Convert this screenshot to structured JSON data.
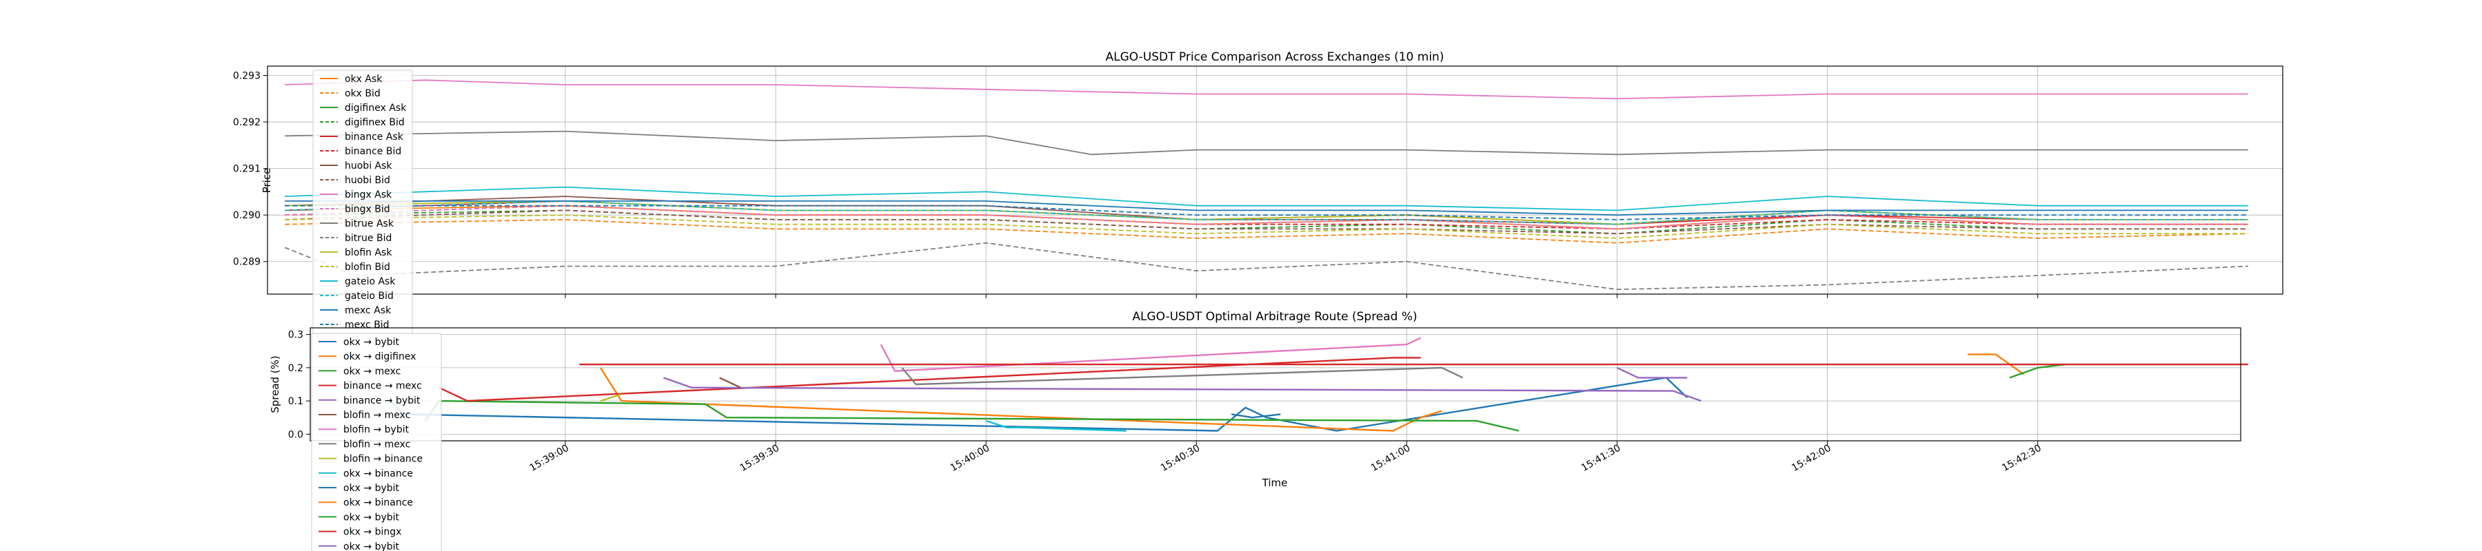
{
  "chart_data": [
    {
      "type": "line",
      "title": "ALGO-USDT Price Comparison Across Exchanges (10 min)",
      "xlabel": "",
      "ylabel": "Price",
      "ylim": [
        0.2883,
        0.2932
      ],
      "yticks": [
        "0.289",
        "0.290",
        "0.291",
        "0.292",
        "0.293"
      ],
      "x_ticks": [
        "15:39:00",
        "15:39:30",
        "15:40:00",
        "15:40:30",
        "15:41:00",
        "15:41:30",
        "15:42:00",
        "15:42:30"
      ],
      "grid": true,
      "legend_position": "upper-left",
      "series": [
        {
          "name": "okx Ask",
          "color": "#ff7f0e",
          "dash": "solid",
          "x": [
            "15:38:20",
            "15:39:00",
            "15:39:30",
            "15:40:00",
            "15:40:30",
            "15:41:00",
            "15:41:30",
            "15:42:00",
            "15:42:30",
            "15:43:00"
          ],
          "y": [
            0.2901,
            0.2902,
            0.29,
            0.29,
            0.2898,
            0.2899,
            0.2897,
            0.29,
            0.2898,
            0.2898
          ]
        },
        {
          "name": "okx Bid",
          "color": "#ff7f0e",
          "dash": "dashed",
          "x": [
            "15:38:20",
            "15:39:00",
            "15:39:30",
            "15:40:00",
            "15:40:30",
            "15:41:00",
            "15:41:30",
            "15:42:00",
            "15:42:30",
            "15:43:00"
          ],
          "y": [
            0.2898,
            0.2899,
            0.2897,
            0.2897,
            0.2895,
            0.2896,
            0.2894,
            0.2897,
            0.2895,
            0.2896
          ]
        },
        {
          "name": "digifinex Ask",
          "color": "#2ca02c",
          "dash": "solid",
          "x": [
            "15:38:20",
            "15:39:00",
            "15:39:30",
            "15:40:00",
            "15:40:30",
            "15:41:00",
            "15:41:30",
            "15:42:00",
            "15:42:30",
            "15:43:00"
          ],
          "y": [
            0.2902,
            0.2903,
            0.2901,
            0.2901,
            0.2899,
            0.29,
            0.2898,
            0.2901,
            0.2899,
            0.2899
          ]
        },
        {
          "name": "digifinex Bid",
          "color": "#2ca02c",
          "dash": "dashed",
          "x": [
            "15:38:20",
            "15:39:00",
            "15:39:30",
            "15:40:00",
            "15:40:30",
            "15:41:00",
            "15:41:30",
            "15:42:00",
            "15:42:30",
            "15:43:00"
          ],
          "y": [
            0.29,
            0.2901,
            0.2899,
            0.2899,
            0.2897,
            0.2898,
            0.2896,
            0.2899,
            0.2897,
            0.2897
          ]
        },
        {
          "name": "binance Ask",
          "color": "#d62728",
          "dash": "solid",
          "x": [
            "15:38:20",
            "15:39:00",
            "15:39:30",
            "15:40:00",
            "15:40:30",
            "15:41:00",
            "15:41:30",
            "15:42:00",
            "15:42:30",
            "15:43:00"
          ],
          "y": [
            0.2901,
            0.2903,
            0.2901,
            0.2901,
            0.2899,
            0.2899,
            0.2898,
            0.29,
            0.2899,
            0.2899
          ]
        },
        {
          "name": "binance Bid",
          "color": "#d62728",
          "dash": "dashed",
          "x": [
            "15:38:20",
            "15:39:00",
            "15:39:30",
            "15:40:00",
            "15:40:30",
            "15:41:00",
            "15:41:30",
            "15:42:00",
            "15:42:30",
            "15:43:00"
          ],
          "y": [
            0.29,
            0.2902,
            0.29,
            0.29,
            0.2898,
            0.2898,
            0.2897,
            0.2899,
            0.2898,
            0.2898
          ]
        },
        {
          "name": "huobi Ask",
          "color": "#8c564b",
          "dash": "solid",
          "x": [
            "15:38:20",
            "15:39:00",
            "15:39:30",
            "15:40:00",
            "15:40:30",
            "15:41:00",
            "15:41:30",
            "15:42:00",
            "15:42:30",
            "15:43:00"
          ],
          "y": [
            0.2902,
            0.2904,
            0.2902,
            0.2902,
            0.2899,
            0.29,
            0.2898,
            0.2901,
            0.2899,
            0.2899
          ]
        },
        {
          "name": "huobi Bid",
          "color": "#8c564b",
          "dash": "dashed",
          "x": [
            "15:38:20",
            "15:39:00",
            "15:39:30",
            "15:40:00",
            "15:40:30",
            "15:41:00",
            "15:41:30",
            "15:42:00",
            "15:42:30",
            "15:43:00"
          ],
          "y": [
            0.2899,
            0.2901,
            0.2899,
            0.2899,
            0.2897,
            0.2897,
            0.2896,
            0.2898,
            0.2897,
            0.2897
          ]
        },
        {
          "name": "bingx Ask",
          "color": "#e377c2",
          "dash": "solid",
          "x": [
            "15:38:20",
            "15:38:40",
            "15:39:00",
            "15:39:30",
            "15:40:00",
            "15:40:30",
            "15:41:00",
            "15:41:30",
            "15:42:00",
            "15:42:30",
            "15:43:00"
          ],
          "y": [
            0.2928,
            0.2929,
            0.2928,
            0.2928,
            0.2927,
            0.2926,
            0.2926,
            0.2925,
            0.2926,
            0.2926,
            0.2926
          ]
        },
        {
          "name": "bingx Bid",
          "color": "#e377c2",
          "dash": "dashed",
          "x": [
            "15:38:20",
            "15:39:00",
            "15:39:30",
            "15:40:00",
            "15:40:30",
            "15:41:00",
            "15:41:30",
            "15:42:00",
            "15:42:30",
            "15:43:00"
          ],
          "y": [
            0.29,
            0.2902,
            0.29,
            0.29,
            0.2898,
            0.2899,
            0.2897,
            0.29,
            0.2898,
            0.2898
          ]
        },
        {
          "name": "bitrue Ask",
          "color": "#7f7f7f",
          "dash": "solid",
          "x": [
            "15:38:20",
            "15:39:00",
            "15:39:30",
            "15:40:00",
            "15:40:15",
            "15:40:30",
            "15:41:00",
            "15:41:30",
            "15:42:00",
            "15:42:30",
            "15:43:00"
          ],
          "y": [
            0.2917,
            0.2918,
            0.2916,
            0.2917,
            0.2913,
            0.2914,
            0.2914,
            0.2913,
            0.2914,
            0.2914,
            0.2914
          ]
        },
        {
          "name": "bitrue Bid",
          "color": "#7f7f7f",
          "dash": "dashed",
          "x": [
            "15:38:20",
            "15:38:30",
            "15:39:00",
            "15:39:30",
            "15:40:00",
            "15:40:30",
            "15:41:00",
            "15:41:30",
            "15:42:00",
            "15:42:30",
            "15:43:00"
          ],
          "y": [
            0.2893,
            0.2887,
            0.2889,
            0.2889,
            0.2894,
            0.2888,
            0.289,
            0.2884,
            0.2885,
            0.2887,
            0.2889
          ]
        },
        {
          "name": "blofin Ask",
          "color": "#bcbd22",
          "dash": "solid",
          "x": [
            "15:38:20",
            "15:39:00",
            "15:39:30",
            "15:40:00",
            "15:40:30",
            "15:41:00",
            "15:41:30",
            "15:42:00",
            "15:42:30",
            "15:43:00"
          ],
          "y": [
            0.2902,
            0.2903,
            0.2901,
            0.2901,
            0.2899,
            0.29,
            0.2898,
            0.2901,
            0.2899,
            0.2899
          ]
        },
        {
          "name": "blofin Bid",
          "color": "#bcbd22",
          "dash": "dashed",
          "x": [
            "15:38:20",
            "15:39:00",
            "15:39:30",
            "15:40:00",
            "15:40:30",
            "15:41:00",
            "15:41:30",
            "15:42:00",
            "15:42:30",
            "15:43:00"
          ],
          "y": [
            0.2899,
            0.29,
            0.2898,
            0.2898,
            0.2896,
            0.2897,
            0.2895,
            0.2898,
            0.2896,
            0.2896
          ]
        },
        {
          "name": "gateio Ask",
          "color": "#17becf",
          "dash": "solid",
          "x": [
            "15:38:20",
            "15:39:00",
            "15:39:30",
            "15:40:00",
            "15:40:30",
            "15:41:00",
            "15:41:30",
            "15:42:00",
            "15:42:30",
            "15:43:00"
          ],
          "y": [
            0.2904,
            0.2906,
            0.2904,
            0.2905,
            0.2902,
            0.2902,
            0.2901,
            0.2904,
            0.2902,
            0.2902
          ]
        },
        {
          "name": "gateio Bid",
          "color": "#17becf",
          "dash": "dashed",
          "x": [
            "15:38:20",
            "15:39:00",
            "15:39:30",
            "15:40:00",
            "15:40:30",
            "15:41:00",
            "15:41:30",
            "15:42:00",
            "15:42:30",
            "15:43:00"
          ],
          "y": [
            0.2901,
            0.2903,
            0.2901,
            0.2901,
            0.2899,
            0.2899,
            0.2898,
            0.2901,
            0.2899,
            0.2899
          ]
        },
        {
          "name": "mexc Ask",
          "color": "#1f77b4",
          "dash": "solid",
          "x": [
            "15:38:20",
            "15:39:00",
            "15:39:30",
            "15:40:00",
            "15:40:30",
            "15:41:00",
            "15:41:30",
            "15:42:00",
            "15:42:30",
            "15:43:00"
          ],
          "y": [
            0.2903,
            0.2903,
            0.2903,
            0.2903,
            0.2901,
            0.2901,
            0.29,
            0.2901,
            0.2901,
            0.2901
          ]
        },
        {
          "name": "mexc Bid",
          "color": "#1f77b4",
          "dash": "dashed",
          "x": [
            "15:38:20",
            "15:39:00",
            "15:39:30",
            "15:40:00",
            "15:40:30",
            "15:41:00",
            "15:41:30",
            "15:42:00",
            "15:42:30",
            "15:43:00"
          ],
          "y": [
            0.2902,
            0.2902,
            0.2902,
            0.2902,
            0.29,
            0.29,
            0.2899,
            0.29,
            0.29,
            0.29
          ]
        }
      ]
    },
    {
      "type": "line",
      "title": "ALGO-USDT Optimal Arbitrage Route (Spread %)",
      "xlabel": "Time",
      "ylabel": "Spread (%)",
      "ylim": [
        -0.02,
        0.32
      ],
      "yticks": [
        "0.0",
        "0.1",
        "0.2",
        "0.3"
      ],
      "x_ticks": [
        "15:39:00",
        "15:39:30",
        "15:40:00",
        "15:40:30",
        "15:41:00",
        "15:41:30",
        "15:42:00",
        "15:42:30"
      ],
      "grid": true,
      "legend_position": "upper-left",
      "series": [
        {
          "name": "okx → bybit",
          "color": "#1f77b4",
          "x": [
            "15:38:35",
            "15:38:37",
            "15:40:33",
            "15:40:37",
            "15:40:40",
            "15:40:50",
            "15:41:37",
            "15:41:40"
          ],
          "y": [
            0.1,
            0.06,
            0.01,
            0.08,
            0.05,
            0.01,
            0.17,
            0.11
          ]
        },
        {
          "name": "okx → digifinex",
          "color": "#ff7f0e",
          "x": [
            "15:39:05",
            "15:39:08",
            "15:40:58",
            "15:41:02",
            "15:41:05"
          ],
          "y": [
            0.2,
            0.1,
            0.01,
            0.05,
            0.07
          ]
        },
        {
          "name": "okx → mexc",
          "color": "#2ca02c",
          "x": [
            "15:38:40",
            "15:38:42",
            "15:39:20",
            "15:39:23",
            "15:41:10",
            "15:41:16"
          ],
          "y": [
            0.04,
            0.1,
            0.09,
            0.05,
            0.04,
            0.01
          ]
        },
        {
          "name": "binance → mexc",
          "color": "#d62728",
          "x": [
            "15:38:42",
            "15:38:46",
            "15:40:58",
            "15:41:02"
          ],
          "y": [
            0.14,
            0.1,
            0.23,
            0.23
          ]
        },
        {
          "name": "binance → bybit",
          "color": "#9467bd",
          "x": [
            "15:39:14",
            "15:39:18",
            "15:41:38",
            "15:41:42"
          ],
          "y": [
            0.17,
            0.14,
            0.13,
            0.1
          ]
        },
        {
          "name": "blofin → mexc",
          "color": "#8c564b",
          "x": [
            "15:39:22",
            "15:39:25"
          ],
          "y": [
            0.17,
            0.14
          ]
        },
        {
          "name": "blofin → bybit",
          "color": "#e377c2",
          "x": [
            "15:39:45",
            "15:39:47",
            "15:41:00",
            "15:41:02"
          ],
          "y": [
            0.27,
            0.19,
            0.27,
            0.29
          ]
        },
        {
          "name": "blofin → mexc",
          "color": "#7f7f7f",
          "x": [
            "15:39:48",
            "15:39:50",
            "15:41:05",
            "15:41:08"
          ],
          "y": [
            0.2,
            0.15,
            0.2,
            0.17
          ]
        },
        {
          "name": "blofin → binance",
          "color": "#bcbd22",
          "x": [
            "15:39:05",
            "15:39:08"
          ],
          "y": [
            0.1,
            0.12
          ]
        },
        {
          "name": "okx → binance",
          "color": "#17becf",
          "x": [
            "15:40:00",
            "15:40:03",
            "15:40:05",
            "15:40:20"
          ],
          "y": [
            0.04,
            0.02,
            0.02,
            0.01
          ]
        },
        {
          "name": "okx → bybit",
          "color": "#1f77b4",
          "x": [
            "15:40:35",
            "15:40:38",
            "15:40:42"
          ],
          "y": [
            0.06,
            0.05,
            0.06
          ]
        },
        {
          "name": "okx → binance",
          "color": "#ff7f0e",
          "x": [
            "15:42:20",
            "15:42:24",
            "15:42:28"
          ],
          "y": [
            0.24,
            0.24,
            0.18
          ]
        },
        {
          "name": "okx → bybit",
          "color": "#2ca02c",
          "x": [
            "15:42:26",
            "15:42:30",
            "15:42:34"
          ],
          "y": [
            0.17,
            0.2,
            0.21
          ]
        },
        {
          "name": "okx → bingx",
          "color": "#d62728",
          "x": [
            "15:39:02",
            "15:39:15",
            "15:39:30",
            "15:40:00",
            "15:40:30",
            "15:41:00",
            "15:41:30",
            "15:42:00",
            "15:42:30",
            "15:43:00"
          ],
          "y": [
            0.21,
            0.21,
            0.21,
            0.21,
            0.21,
            0.21,
            0.21,
            0.21,
            0.21,
            0.21
          ]
        },
        {
          "name": "okx → bybit",
          "color": "#9467bd",
          "x": [
            "15:41:30",
            "15:41:33",
            "15:41:40"
          ],
          "y": [
            0.2,
            0.17,
            0.17
          ]
        }
      ]
    }
  ],
  "bottom_legend_label_override": "mexc Bid"
}
